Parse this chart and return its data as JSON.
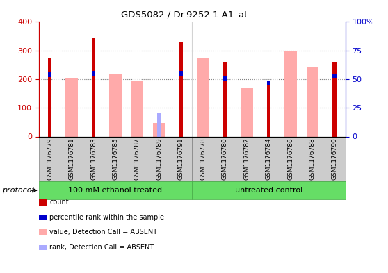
{
  "title": "GDS5082 / Dr.9252.1.A1_at",
  "samples": [
    "GSM1176779",
    "GSM1176781",
    "GSM1176783",
    "GSM1176785",
    "GSM1176787",
    "GSM1176789",
    "GSM1176791",
    "GSM1176778",
    "GSM1176780",
    "GSM1176782",
    "GSM1176784",
    "GSM1176786",
    "GSM1176788",
    "GSM1176790"
  ],
  "count_values": [
    275,
    0,
    345,
    0,
    0,
    0,
    328,
    0,
    260,
    0,
    190,
    0,
    0,
    260
  ],
  "rank_values": [
    54,
    0,
    55,
    0,
    0,
    0,
    55,
    0,
    51,
    0,
    47,
    0,
    0,
    53
  ],
  "absent_value_values": [
    0,
    205,
    0,
    220,
    192,
    48,
    0,
    275,
    0,
    172,
    0,
    300,
    242,
    0
  ],
  "absent_rank_values": [
    0,
    0,
    0,
    0,
    0,
    20,
    0,
    0,
    0,
    0,
    0,
    0,
    0,
    0
  ],
  "group1_count": 7,
  "group2_count": 7,
  "group1_label": "100 mM ethanol treated",
  "group2_label": "untreated control",
  "protocol_label": "protocol",
  "ylim_left": [
    0,
    400
  ],
  "ylim_right": [
    0,
    100
  ],
  "yticks_left": [
    0,
    100,
    200,
    300,
    400
  ],
  "yticks_right": [
    0,
    25,
    50,
    75,
    100
  ],
  "yticklabels_right": [
    "0",
    "25",
    "50",
    "75",
    "100%"
  ],
  "color_count": "#cc0000",
  "color_rank": "#0000cc",
  "color_absent_value": "#ffaaaa",
  "color_absent_rank": "#aaaaff",
  "color_group_bg": "#66dd66",
  "color_xtick_bg": "#cccccc",
  "color_axis_left": "#cc0000",
  "color_axis_right": "#0000cc",
  "legend_items": [
    {
      "color": "#cc0000",
      "label": "count"
    },
    {
      "color": "#0000cc",
      "label": "percentile rank within the sample"
    },
    {
      "color": "#ffaaaa",
      "label": "value, Detection Call = ABSENT"
    },
    {
      "color": "#aaaaff",
      "label": "rank, Detection Call = ABSENT"
    }
  ]
}
